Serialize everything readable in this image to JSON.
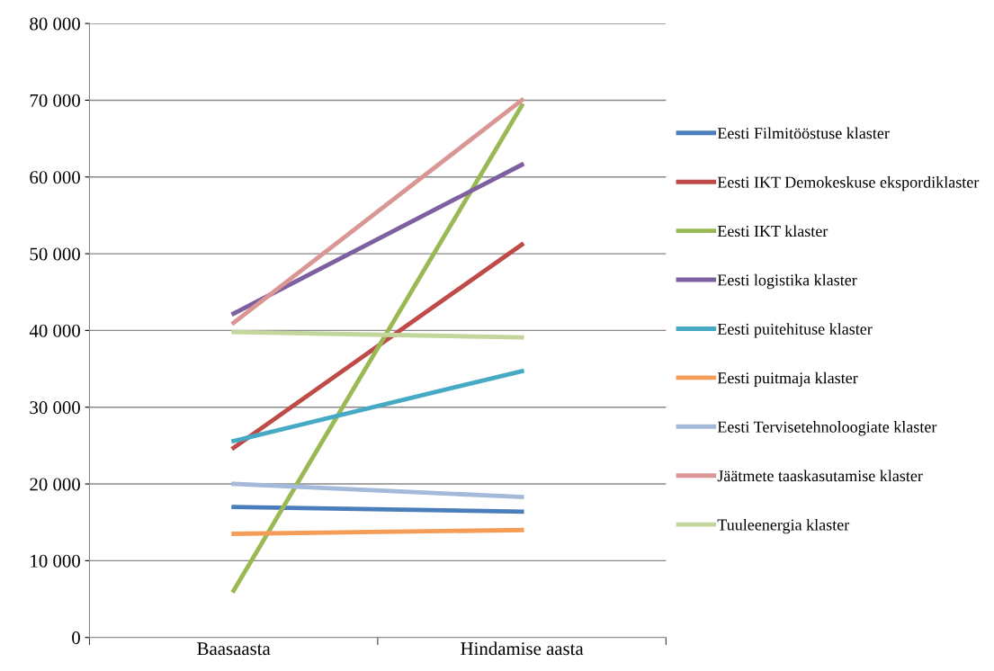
{
  "chart_data": {
    "type": "line",
    "categories": [
      "Baasaasta",
      "Hindamise aasta"
    ],
    "series": [
      {
        "name": "Eesti Filmitööstuse klaster",
        "color": "#4a7ebb",
        "values": [
          17000,
          16400
        ]
      },
      {
        "name": "Eesti IKT Demokeskuse ekspordiklaster",
        "color": "#be4b48",
        "values": [
          24700,
          51200
        ]
      },
      {
        "name": "Eesti IKT klaster",
        "color": "#98b954",
        "values": [
          6100,
          69300
        ]
      },
      {
        "name": "Eesti logistika klaster",
        "color": "#7d60a0",
        "values": [
          42200,
          61600
        ]
      },
      {
        "name": "Eesti puitehituse klaster",
        "color": "#46aac5",
        "values": [
          25600,
          34700
        ]
      },
      {
        "name": "Eesti puitmaja klaster",
        "color": "#f59d56",
        "values": [
          13500,
          14000
        ]
      },
      {
        "name": "Eesti Tervisetehnoloogiate klaster",
        "color": "#a5b9da",
        "values": [
          20000,
          18300
        ]
      },
      {
        "name": "Jäätmete taaskasutamise klaster",
        "color": "#d99694",
        "values": [
          41000,
          70000
        ]
      },
      {
        "name": "Tuuleenergia klaster",
        "color": "#c3d69b",
        "values": [
          39800,
          39100
        ]
      }
    ],
    "ylim": [
      0,
      80000
    ],
    "yticks": [
      0,
      {
        "value": 10000,
        "label": "10 000"
      },
      {
        "value": 20000,
        "label": "20 000"
      },
      {
        "value": 30000,
        "label": "30 000"
      },
      {
        "value": 40000,
        "label": "40 000"
      },
      {
        "value": 50000,
        "label": "50 000"
      },
      {
        "value": 60000,
        "label": "60 000"
      },
      {
        "value": 70000,
        "label": "70 000"
      },
      {
        "value": 80000,
        "label": "80 000"
      }
    ],
    "grid": "y",
    "legend": "right",
    "marker": "none",
    "line_style": "solid"
  }
}
